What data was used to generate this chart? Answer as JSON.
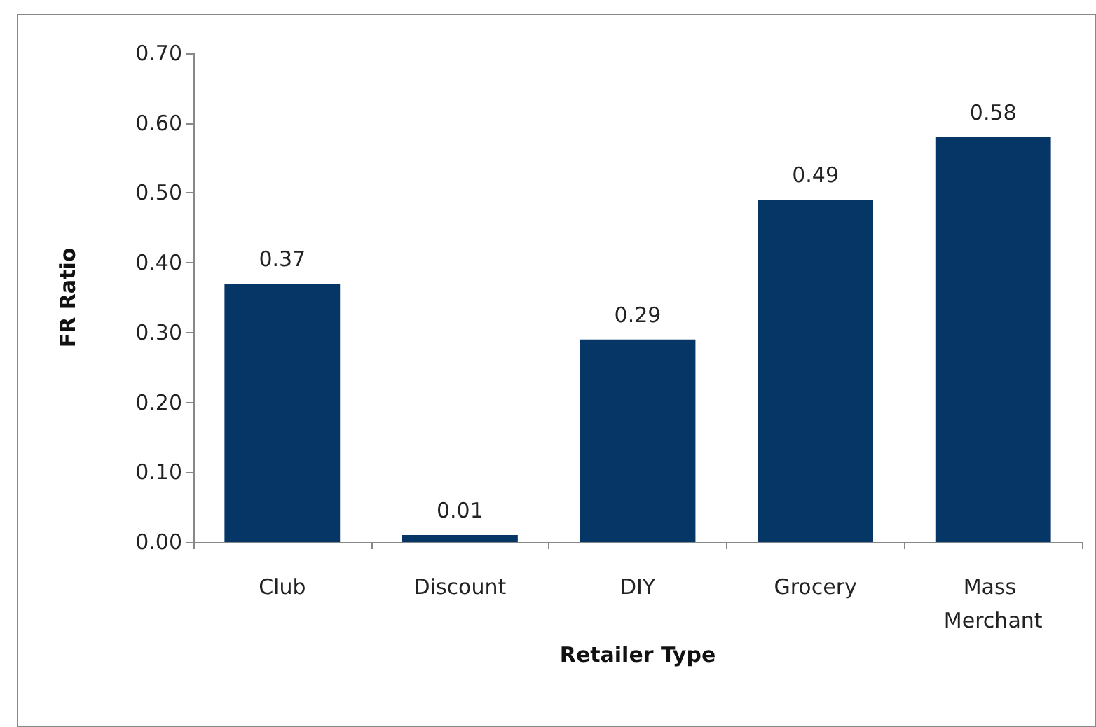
{
  "chart_data": {
    "type": "bar",
    "xlabel": "Retailer Type",
    "ylabel": "FR Ratio",
    "categories": [
      "Club",
      "Discount",
      "DIY",
      "Grocery",
      "Mass Merchant"
    ],
    "values": [
      0.37,
      0.01,
      0.29,
      0.49,
      0.58
    ],
    "color": "#063665",
    "ylim": [
      0,
      0.7
    ],
    "yticks": [
      {
        "value": 0,
        "label": "0.00"
      },
      {
        "value": 0.1,
        "label": "0.10"
      },
      {
        "value": 0.2,
        "label": "0.20"
      },
      {
        "value": 0.3,
        "label": "0.30"
      },
      {
        "value": 0.4,
        "label": "0.40"
      },
      {
        "value": 0.5,
        "label": "0.50"
      },
      {
        "value": 0.6,
        "label": "0.60"
      },
      {
        "value": 0.7,
        "label": "0.70"
      }
    ],
    "grid": false,
    "data_labels": true
  }
}
